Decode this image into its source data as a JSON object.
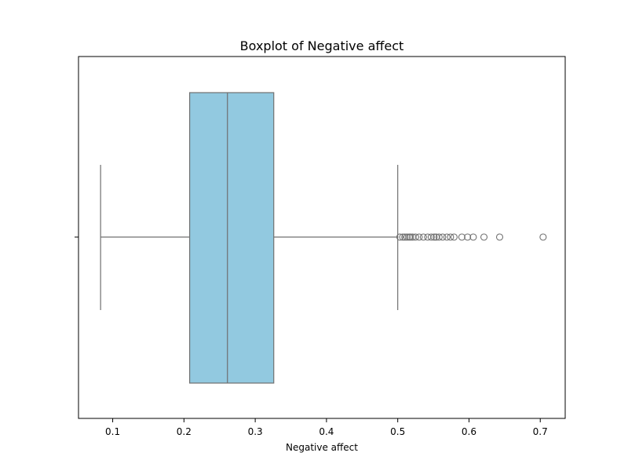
{
  "chart_data": {
    "type": "boxplot",
    "title": "Boxplot of Negative affect",
    "xlabel": "Negative affect",
    "ylabel": "",
    "xlim": [
      0.052,
      0.735
    ],
    "xticks": [
      0.1,
      0.2,
      0.3,
      0.4,
      0.5,
      0.6,
      0.7
    ],
    "xtick_labels": [
      "0.1",
      "0.2",
      "0.3",
      "0.4",
      "0.5",
      "0.6",
      "0.7"
    ],
    "grid": false,
    "box": {
      "whisker_low": 0.083,
      "q1": 0.208,
      "median": 0.261,
      "q3": 0.326,
      "whisker_high": 0.5
    },
    "outliers": [
      0.503,
      0.507,
      0.51,
      0.513,
      0.516,
      0.518,
      0.521,
      0.525,
      0.53,
      0.536,
      0.542,
      0.547,
      0.551,
      0.554,
      0.558,
      0.563,
      0.569,
      0.574,
      0.579,
      0.59,
      0.598,
      0.606,
      0.621,
      0.643,
      0.704
    ],
    "colors": {
      "box_fill": "#92c9e0",
      "line": "#707070",
      "axes": "#000000"
    }
  }
}
